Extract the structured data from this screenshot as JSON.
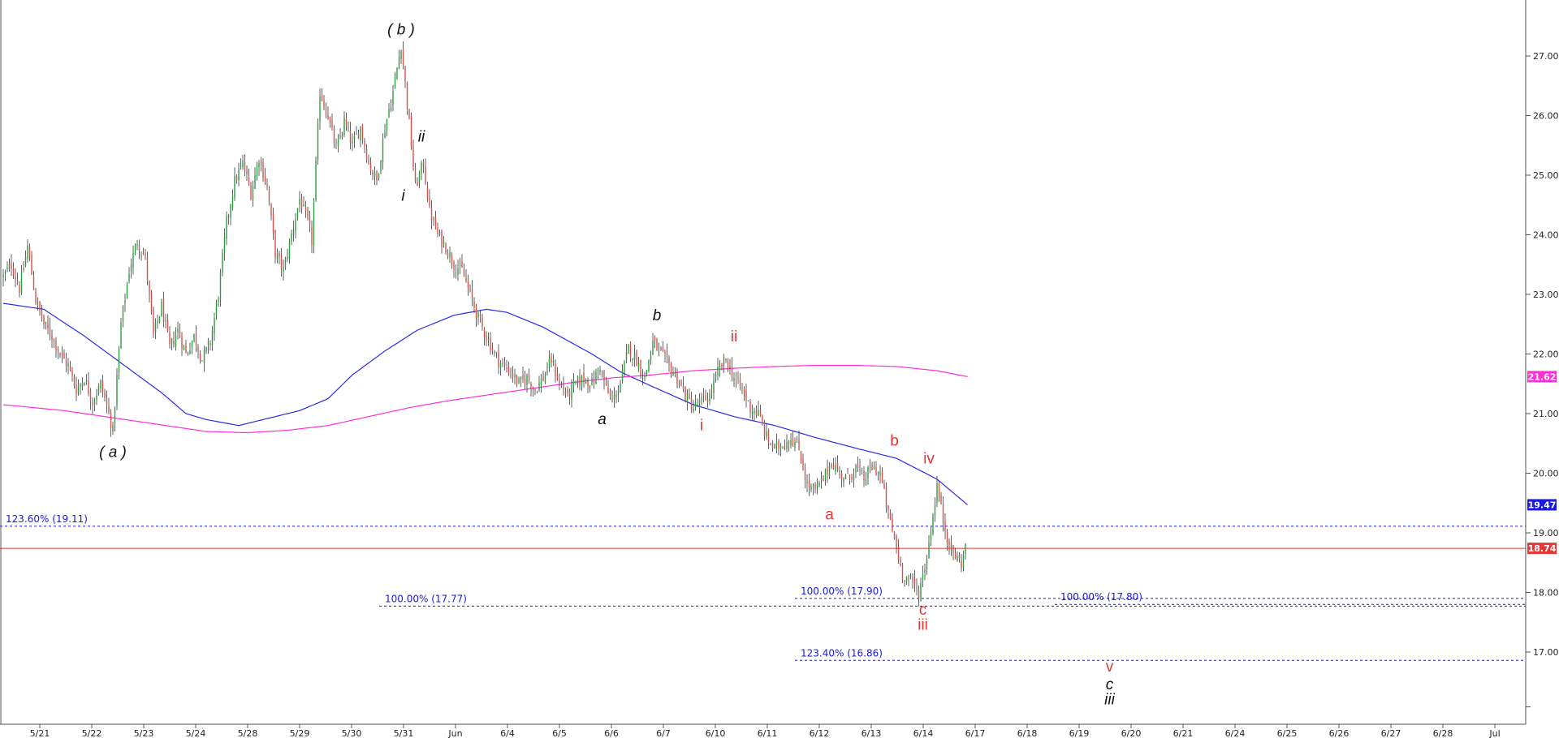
{
  "chart_data": {
    "type": "candlestick",
    "y_axis": {
      "min": 16.0,
      "max": 27.5,
      "position": "right",
      "tick_labels": [
        "17.00",
        "18.00",
        "19.00",
        "20.00",
        "21.00",
        "22.00",
        "23.00",
        "24.00",
        "25.00",
        "26.00",
        "27.00"
      ],
      "ticks": [
        17,
        18,
        19,
        20,
        21,
        22,
        23,
        24,
        25,
        26,
        27
      ]
    },
    "x_axis": {
      "tick_labels": [
        "5/21",
        "5/22",
        "5/23",
        "5/24",
        "5/28",
        "5/29",
        "5/30",
        "5/31",
        "Jun",
        "6/4",
        "6/5",
        "6/6",
        "6/7",
        "6/10",
        "6/11",
        "6/12",
        "6/13",
        "6/14",
        "6/17",
        "6/18",
        "6/19",
        "6/20",
        "6/21",
        "6/24",
        "6/25",
        "6/26",
        "6/27",
        "6/28",
        "Jul"
      ]
    },
    "price_anchors": [
      [
        0,
        23.3
      ],
      [
        4,
        23.5
      ],
      [
        8,
        23.1
      ],
      [
        12,
        23.8
      ],
      [
        16,
        22.9
      ],
      [
        20,
        22.5
      ],
      [
        24,
        22.3
      ],
      [
        28,
        22.0
      ],
      [
        32,
        21.8
      ],
      [
        36,
        21.4
      ],
      [
        40,
        21.6
      ],
      [
        44,
        21.2
      ],
      [
        48,
        21.5
      ],
      [
        52,
        21.0
      ],
      [
        54,
        20.7
      ],
      [
        58,
        22.5
      ],
      [
        62,
        23.4
      ],
      [
        66,
        23.9
      ],
      [
        70,
        23.6
      ],
      [
        74,
        22.3
      ],
      [
        78,
        22.8
      ],
      [
        82,
        22.1
      ],
      [
        86,
        22.4
      ],
      [
        90,
        22.0
      ],
      [
        94,
        22.3
      ],
      [
        98,
        21.9
      ],
      [
        102,
        22.2
      ],
      [
        106,
        23.0
      ],
      [
        110,
        24.2
      ],
      [
        114,
        24.9
      ],
      [
        118,
        25.2
      ],
      [
        122,
        24.7
      ],
      [
        126,
        25.3
      ],
      [
        130,
        24.8
      ],
      [
        134,
        23.7
      ],
      [
        138,
        23.4
      ],
      [
        142,
        24.0
      ],
      [
        146,
        24.6
      ],
      [
        150,
        24.2
      ],
      [
        152,
        23.9
      ],
      [
        156,
        26.4
      ],
      [
        160,
        26.0
      ],
      [
        164,
        25.4
      ],
      [
        168,
        25.9
      ],
      [
        172,
        25.5
      ],
      [
        176,
        25.8
      ],
      [
        180,
        25.2
      ],
      [
        184,
        24.9
      ],
      [
        188,
        25.8
      ],
      [
        192,
        26.4
      ],
      [
        196,
        27.2
      ],
      [
        199,
        26.2
      ],
      [
        203,
        24.8
      ],
      [
        207,
        25.2
      ],
      [
        210,
        24.4
      ],
      [
        214,
        24.0
      ],
      [
        218,
        23.8
      ],
      [
        222,
        23.5
      ],
      [
        226,
        23.4
      ],
      [
        230,
        23.0
      ],
      [
        234,
        22.6
      ],
      [
        238,
        22.3
      ],
      [
        242,
        22.0
      ],
      [
        246,
        21.8
      ],
      [
        250,
        21.7
      ],
      [
        254,
        21.5
      ],
      [
        258,
        21.6
      ],
      [
        262,
        21.4
      ],
      [
        266,
        21.6
      ],
      [
        270,
        21.9
      ],
      [
        274,
        21.5
      ],
      [
        278,
        21.3
      ],
      [
        282,
        21.5
      ],
      [
        286,
        21.6
      ],
      [
        290,
        21.5
      ],
      [
        294,
        21.8
      ],
      [
        297,
        21.4
      ],
      [
        300,
        21.2
      ],
      [
        304,
        21.5
      ],
      [
        308,
        22.1
      ],
      [
        312,
        21.9
      ],
      [
        316,
        21.6
      ],
      [
        320,
        22.2
      ],
      [
        324,
        22.0
      ],
      [
        328,
        21.8
      ],
      [
        332,
        21.6
      ],
      [
        336,
        21.3
      ],
      [
        340,
        21.1
      ],
      [
        344,
        21.2
      ],
      [
        348,
        21.3
      ],
      [
        352,
        21.7
      ],
      [
        356,
        21.9
      ],
      [
        360,
        21.6
      ],
      [
        364,
        21.4
      ],
      [
        368,
        21.1
      ],
      [
        372,
        21.0
      ],
      [
        376,
        20.6
      ],
      [
        380,
        20.4
      ],
      [
        384,
        20.5
      ],
      [
        388,
        20.6
      ],
      [
        392,
        20.4
      ],
      [
        396,
        19.8
      ],
      [
        400,
        19.7
      ],
      [
        404,
        19.9
      ],
      [
        408,
        20.2
      ],
      [
        412,
        20.0
      ],
      [
        416,
        19.9
      ],
      [
        420,
        20.1
      ],
      [
        424,
        19.9
      ],
      [
        428,
        20.1
      ],
      [
        432,
        20.0
      ],
      [
        436,
        19.3
      ],
      [
        439,
        18.9
      ],
      [
        443,
        18.3
      ],
      [
        447,
        18.2
      ],
      [
        451,
        18.0
      ],
      [
        455,
        18.6
      ],
      [
        458,
        19.3
      ],
      [
        460,
        19.8
      ],
      [
        463,
        19.2
      ],
      [
        466,
        18.8
      ],
      [
        469,
        18.6
      ],
      [
        472,
        18.5
      ],
      [
        474,
        18.74
      ]
    ],
    "series": [
      {
        "name": "",
        "color": "#2a2ae8",
        "anchors": [
          [
            0,
            22.85
          ],
          [
            20,
            22.75
          ],
          [
            40,
            22.3
          ],
          [
            60,
            21.8
          ],
          [
            78,
            21.35
          ],
          [
            90,
            21.0
          ],
          [
            100,
            20.9
          ],
          [
            116,
            20.8
          ],
          [
            128,
            20.9
          ],
          [
            146,
            21.05
          ],
          [
            160,
            21.25
          ],
          [
            172,
            21.65
          ],
          [
            188,
            22.05
          ],
          [
            204,
            22.4
          ],
          [
            222,
            22.65
          ],
          [
            238,
            22.75
          ],
          [
            248,
            22.7
          ],
          [
            266,
            22.45
          ],
          [
            290,
            22.0
          ],
          [
            304,
            21.7
          ],
          [
            320,
            21.45
          ],
          [
            340,
            21.15
          ],
          [
            360,
            20.95
          ],
          [
            380,
            20.8
          ],
          [
            400,
            20.6
          ],
          [
            420,
            20.42
          ],
          [
            440,
            20.25
          ],
          [
            460,
            19.9
          ],
          [
            475,
            19.47
          ]
        ]
      },
      {
        "name": "",
        "color": "#ff2fd8",
        "anchors": [
          [
            0,
            21.15
          ],
          [
            30,
            21.05
          ],
          [
            60,
            20.9
          ],
          [
            80,
            20.8
          ],
          [
            100,
            20.7
          ],
          [
            120,
            20.68
          ],
          [
            140,
            20.72
          ],
          [
            160,
            20.8
          ],
          [
            180,
            20.95
          ],
          [
            200,
            21.1
          ],
          [
            220,
            21.22
          ],
          [
            240,
            21.32
          ],
          [
            260,
            21.42
          ],
          [
            280,
            21.52
          ],
          [
            300,
            21.6
          ],
          [
            320,
            21.65
          ],
          [
            340,
            21.72
          ],
          [
            360,
            21.76
          ],
          [
            380,
            21.79
          ],
          [
            400,
            21.81
          ],
          [
            420,
            21.81
          ],
          [
            440,
            21.79
          ],
          [
            460,
            21.72
          ],
          [
            475,
            21.62
          ]
        ]
      }
    ],
    "value_tags": [
      {
        "label": "21.62",
        "value": 21.62,
        "color": "#ff2fd8"
      },
      {
        "label": "19.47",
        "value": 19.47,
        "color": "#1a1ae0"
      },
      {
        "label": "18.74",
        "value": 18.74,
        "color": "#e53935"
      }
    ],
    "horizontal_lines": [
      {
        "value": 18.74,
        "color": "#e53935",
        "style": "solid",
        "start": "left"
      },
      {
        "value": 19.11,
        "color": "#1a1ae0",
        "style": "dashed",
        "start": "left",
        "label": "123.60% (19.11)"
      },
      {
        "value": 17.77,
        "color": "#1a1ae0",
        "style": "dashed",
        "start": "5/31",
        "label": "100.00% (17.77)"
      },
      {
        "value": 17.9,
        "color": "#1a1ae0",
        "style": "dashed",
        "start": "6/12",
        "label": "100.00% (17.90)"
      },
      {
        "value": 17.8,
        "color": "#1a1ae0",
        "style": "dashed",
        "start": "6/19",
        "label": "100.00% (17.80)"
      },
      {
        "value": 16.86,
        "color": "#1a1ae0",
        "style": "dashed",
        "start": "6/12",
        "label": "123.40% (16.86)"
      }
    ],
    "wave_labels": [
      {
        "text": "( a )",
        "color": "#111111",
        "italic": true,
        "i": 54,
        "price": 20.6,
        "pos": "below"
      },
      {
        "text": "( b )",
        "color": "#111111",
        "italic": true,
        "i": 196,
        "price": 27.2,
        "pos": "above"
      },
      {
        "text": "i",
        "color": "#111111",
        "italic": true,
        "i": 197,
        "price": 24.9,
        "pos": "below"
      },
      {
        "text": "ii",
        "color": "#111111",
        "italic": true,
        "i": 206,
        "price": 25.4,
        "pos": "above"
      },
      {
        "text": "a",
        "color": "#111111",
        "italic": true,
        "i": 295,
        "price": 21.15,
        "pos": "below"
      },
      {
        "text": "b",
        "color": "#111111",
        "italic": true,
        "i": 322,
        "price": 22.4,
        "pos": "above"
      },
      {
        "text": "i",
        "color": "#e53935",
        "italic": false,
        "i": 344,
        "price": 21.05,
        "pos": "below"
      },
      {
        "text": "ii",
        "color": "#e53935",
        "italic": false,
        "i": 360,
        "price": 22.05,
        "pos": "above"
      },
      {
        "text": "a",
        "color": "#e53935",
        "italic": false,
        "i": 407,
        "price": 19.55,
        "pos": "below"
      },
      {
        "text": "b",
        "color": "#e53935",
        "italic": false,
        "i": 439,
        "price": 20.3,
        "pos": "above"
      },
      {
        "text": "iv",
        "color": "#e53935",
        "italic": false,
        "i": 456,
        "price": 20.0,
        "pos": "above"
      },
      {
        "text": "c",
        "color": "#e53935",
        "italic": false,
        "i": 453,
        "price": 17.95,
        "pos": "below"
      },
      {
        "text": "iii",
        "color": "#e53935",
        "italic": false,
        "i": 453,
        "price": 17.7,
        "pos": "below"
      },
      {
        "text": "v",
        "color": "#e53935",
        "italic": false,
        "i": 545,
        "price": 17.0,
        "pos": "below"
      },
      {
        "text": "c",
        "color": "#111111",
        "italic": true,
        "i": 545,
        "price": 16.7,
        "pos": "below"
      },
      {
        "text": "iii",
        "color": "#111111",
        "italic": true,
        "i": 545,
        "price": 16.45,
        "pos": "below"
      }
    ]
  }
}
